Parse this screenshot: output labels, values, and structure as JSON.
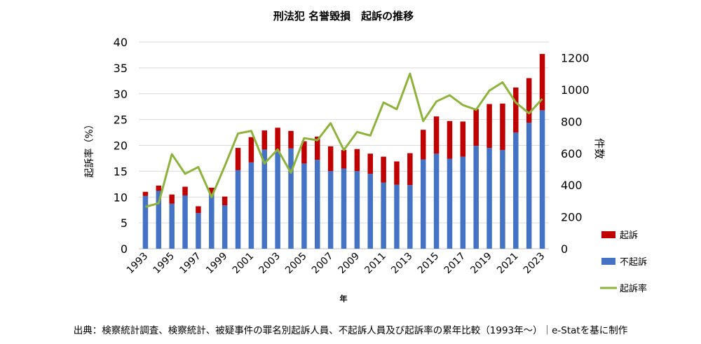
{
  "chart_data": {
    "type": "bar",
    "stacked": true,
    "title": "刑法犯 名誉毀損　起訴の推移",
    "xlabel": "年",
    "ylabel_left": "起訴率（%）",
    "ylabel_right": "件数",
    "ylim_left": [
      0,
      40
    ],
    "yticks_left": [
      0,
      5,
      10,
      15,
      20,
      25,
      30,
      35,
      40
    ],
    "ylim_right": [
      0,
      1300
    ],
    "yticks_right": [
      0,
      200,
      400,
      600,
      800,
      1000,
      1200
    ],
    "grid": true,
    "legend_placement": "right",
    "categories": [
      1993,
      1994,
      1995,
      1996,
      1997,
      1998,
      1999,
      2000,
      2001,
      2002,
      2003,
      2004,
      2005,
      2006,
      2007,
      2008,
      2009,
      2010,
      2011,
      2012,
      2013,
      2014,
      2015,
      2016,
      2017,
      2018,
      2019,
      2020,
      2021,
      2022,
      2023
    ],
    "xtick_labels": [
      "1993",
      "1995",
      "1997",
      "1999",
      "2001",
      "2003",
      "2005",
      "2007",
      "2009",
      "2011",
      "2013",
      "2015",
      "2017",
      "2019",
      "2021",
      "2023"
    ],
    "series": [
      {
        "name": "不起訴",
        "type": "bar",
        "axis": "right",
        "color": "#4472c4",
        "values": [
          332,
          364,
          283,
          335,
          224,
          341,
          273,
          494,
          543,
          624,
          611,
          631,
          536,
          559,
          488,
          504,
          488,
          471,
          416,
          403,
          400,
          562,
          598,
          566,
          579,
          647,
          634,
          621,
          731,
          793,
          871
        ]
      },
      {
        "name": "起訴",
        "type": "bar",
        "axis": "right",
        "color": "#c00000",
        "values": [
          26,
          33,
          58,
          55,
          43,
          43,
          55,
          140,
          159,
          120,
          150,
          110,
          140,
          146,
          156,
          117,
          139,
          127,
          163,
          146,
          201,
          186,
          234,
          237,
          221,
          231,
          276,
          292,
          283,
          280,
          354
        ]
      },
      {
        "name": "起訴率",
        "type": "line",
        "axis": "left",
        "color": "#8db33a",
        "values": [
          8.1,
          8.8,
          18.3,
          14.5,
          15.8,
          10.0,
          16.0,
          22.3,
          22.8,
          16.5,
          19.2,
          14.7,
          21.4,
          21.0,
          24.3,
          19.1,
          22.6,
          21.9,
          28.3,
          27.0,
          33.9,
          24.7,
          28.5,
          29.7,
          27.8,
          26.9,
          30.6,
          32.2,
          28.3,
          26.2,
          29.0
        ]
      }
    ],
    "legend": [
      "起訴",
      "不起訴",
      "起訴率"
    ]
  },
  "source": "出典：検察統計調査、検察統計、被疑事件の罪名別起訴人員、不起訴人員及び起訴率の累年比較（1993年〜）｜e-Statを基に制作"
}
